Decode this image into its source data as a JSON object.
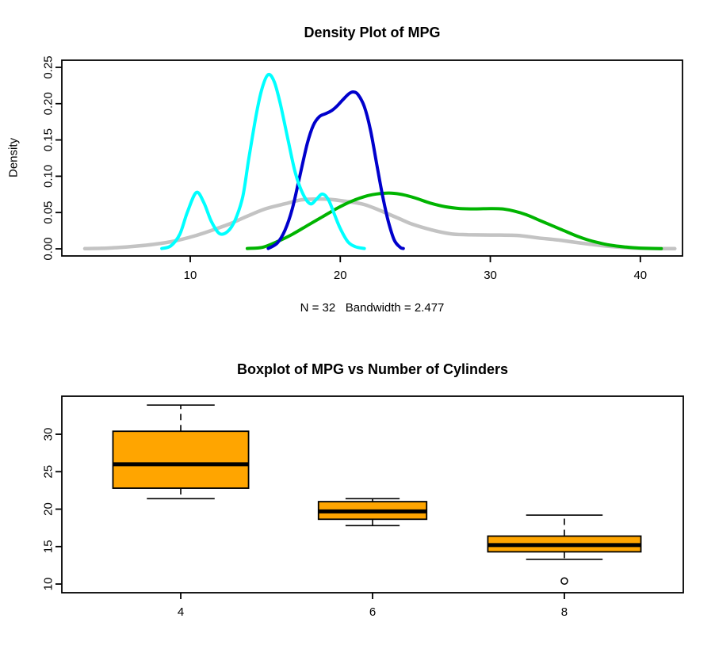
{
  "page": {
    "background": "#FFFFFF"
  },
  "chart_data": [
    {
      "id": "density",
      "type": "line",
      "title": "Density Plot of MPG",
      "xlabel": "N = 32   Bandwidth = 2.477",
      "ylabel": "Density",
      "xlim": [
        1.44,
        42.81
      ],
      "ylim": [
        -0.0098,
        0.2598
      ],
      "grid": false,
      "legend_position": "none",
      "xticks": {
        "values": [
          10,
          20,
          30,
          40
        ],
        "labels": [
          "10",
          "20",
          "30",
          "40"
        ]
      },
      "yticks": {
        "values": [
          0,
          0.05,
          0.1,
          0.15,
          0.2,
          0.25
        ],
        "labels": [
          "0.00",
          "0.05",
          "0.10",
          "0.15",
          "0.20",
          "0.25"
        ]
      },
      "series": [
        {
          "name": "overall-mpg-density",
          "color": "#C3C3C3",
          "line_width": 4.5,
          "points": [
            [
              2.97,
              0.0002
            ],
            [
              4.5,
              0.001
            ],
            [
              6,
              0.003
            ],
            [
              7.5,
              0.006
            ],
            [
              9,
              0.011
            ],
            [
              10.4,
              0.0185
            ],
            [
              11.5,
              0.026
            ],
            [
              12.7,
              0.035
            ],
            [
              13.8,
              0.045
            ],
            [
              15,
              0.055
            ],
            [
              16.3,
              0.062
            ],
            [
              17.4,
              0.0675
            ],
            [
              18.2,
              0.0685
            ],
            [
              19,
              0.0685
            ],
            [
              20,
              0.0665
            ],
            [
              21,
              0.0635
            ],
            [
              21.6,
              0.061
            ],
            [
              22.4,
              0.055
            ],
            [
              23.2,
              0.048
            ],
            [
              24,
              0.041
            ],
            [
              24.8,
              0.034
            ],
            [
              26.1,
              0.026
            ],
            [
              27.4,
              0.0205
            ],
            [
              28.5,
              0.0195
            ],
            [
              30,
              0.019
            ],
            [
              31.8,
              0.0185
            ],
            [
              33.2,
              0.015
            ],
            [
              34.4,
              0.0125
            ],
            [
              35.3,
              0.01
            ],
            [
              36.4,
              0.007
            ],
            [
              37.4,
              0.0045
            ],
            [
              38.5,
              0.0025
            ],
            [
              39.6,
              0.001
            ],
            [
              41,
              0.0004
            ],
            [
              42.3,
              0.0002
            ]
          ]
        },
        {
          "name": "4-cylinder-density",
          "color": "#00B400",
          "line_width": 4,
          "points": [
            [
              13.8,
              0.0005
            ],
            [
              14.8,
              0.002
            ],
            [
              15.8,
              0.01
            ],
            [
              16.8,
              0.02
            ],
            [
              17.8,
              0.032
            ],
            [
              18.8,
              0.044
            ],
            [
              19.8,
              0.056
            ],
            [
              20.8,
              0.066
            ],
            [
              21.8,
              0.073
            ],
            [
              22.6,
              0.076
            ],
            [
              23.4,
              0.0768
            ],
            [
              24.2,
              0.0745
            ],
            [
              25,
              0.07
            ],
            [
              26,
              0.063
            ],
            [
              27,
              0.058
            ],
            [
              28,
              0.0555
            ],
            [
              29,
              0.055
            ],
            [
              30,
              0.0555
            ],
            [
              30.8,
              0.055
            ],
            [
              31.6,
              0.052
            ],
            [
              32.4,
              0.047
            ],
            [
              33.2,
              0.04
            ],
            [
              34,
              0.033
            ],
            [
              34.8,
              0.026
            ],
            [
              35.6,
              0.019
            ],
            [
              36.4,
              0.013
            ],
            [
              37.2,
              0.0085
            ],
            [
              38,
              0.005
            ],
            [
              39,
              0.0025
            ],
            [
              40,
              0.001
            ],
            [
              41.4,
              0.0004
            ]
          ]
        },
        {
          "name": "6-cylinder-density",
          "color": "#0000CC",
          "line_width": 4,
          "points": [
            [
              15.2,
              0.0005
            ],
            [
              15.8,
              0.008
            ],
            [
              16.3,
              0.025
            ],
            [
              16.8,
              0.055
            ],
            [
              17.3,
              0.1
            ],
            [
              17.8,
              0.145
            ],
            [
              18.2,
              0.17
            ],
            [
              18.6,
              0.182
            ],
            [
              19,
              0.186
            ],
            [
              19.4,
              0.19
            ],
            [
              19.8,
              0.197
            ],
            [
              20.2,
              0.206
            ],
            [
              20.6,
              0.214
            ],
            [
              20.9,
              0.216
            ],
            [
              21.2,
              0.212
            ],
            [
              21.6,
              0.196
            ],
            [
              22,
              0.165
            ],
            [
              22.4,
              0.12
            ],
            [
              22.8,
              0.075
            ],
            [
              23.2,
              0.038
            ],
            [
              23.6,
              0.012
            ],
            [
              24,
              0.002
            ],
            [
              24.2,
              0.0005
            ]
          ]
        },
        {
          "name": "8-cylinder-density",
          "color": "#00FFFF",
          "line_width": 4,
          "points": [
            [
              8.1,
              0.0005
            ],
            [
              8.7,
              0.004
            ],
            [
              9.3,
              0.02
            ],
            [
              9.8,
              0.05
            ],
            [
              10.4,
              0.0775
            ],
            [
              10.9,
              0.064
            ],
            [
              11.4,
              0.038
            ],
            [
              11.95,
              0.021
            ],
            [
              12.5,
              0.024
            ],
            [
              13,
              0.04
            ],
            [
              13.5,
              0.072
            ],
            [
              13.9,
              0.124
            ],
            [
              14.4,
              0.185
            ],
            [
              14.8,
              0.222
            ],
            [
              15.2,
              0.24
            ],
            [
              15.6,
              0.23
            ],
            [
              16,
              0.2
            ],
            [
              16.5,
              0.152
            ],
            [
              17,
              0.105
            ],
            [
              17.5,
              0.076
            ],
            [
              18,
              0.062
            ],
            [
              18.4,
              0.068
            ],
            [
              18.8,
              0.0755
            ],
            [
              19.2,
              0.068
            ],
            [
              19.6,
              0.048
            ],
            [
              20,
              0.028
            ],
            [
              20.5,
              0.01
            ],
            [
              21,
              0.003
            ],
            [
              21.6,
              0.0005
            ]
          ]
        }
      ]
    },
    {
      "id": "boxplot",
      "type": "boxplot",
      "title": "Boxplot of MPG vs Number of Cylinders",
      "xlabel": "",
      "ylabel": "",
      "xlim": [
        0.38,
        3.62
      ],
      "ylim": [
        8.84,
        35.08
      ],
      "grid": false,
      "box_fill": "#FFA500",
      "varwidth": true,
      "xticks": {
        "values": [
          1,
          2,
          3
        ],
        "labels": [
          "4",
          "6",
          "8"
        ]
      },
      "yticks": {
        "values": [
          10,
          15,
          20,
          25,
          30
        ],
        "labels": [
          "10",
          "15",
          "20",
          "25",
          "30"
        ]
      },
      "boxes": [
        {
          "category": "4",
          "position": 1,
          "n": 11,
          "width_units": 0.707,
          "whisker_low": 21.4,
          "q1": 22.8,
          "median": 26.0,
          "q3": 30.4,
          "whisker_high": 33.9,
          "outliers": []
        },
        {
          "category": "6",
          "position": 2,
          "n": 7,
          "width_units": 0.564,
          "whisker_low": 17.8,
          "q1": 18.65,
          "median": 19.7,
          "q3": 21.0,
          "whisker_high": 21.4,
          "outliers": []
        },
        {
          "category": "8",
          "position": 3,
          "n": 14,
          "width_units": 0.798,
          "whisker_low": 13.3,
          "q1": 14.3,
          "median": 15.2,
          "q3": 16.4,
          "whisker_high": 19.2,
          "outliers": [
            10.4
          ]
        }
      ]
    }
  ]
}
